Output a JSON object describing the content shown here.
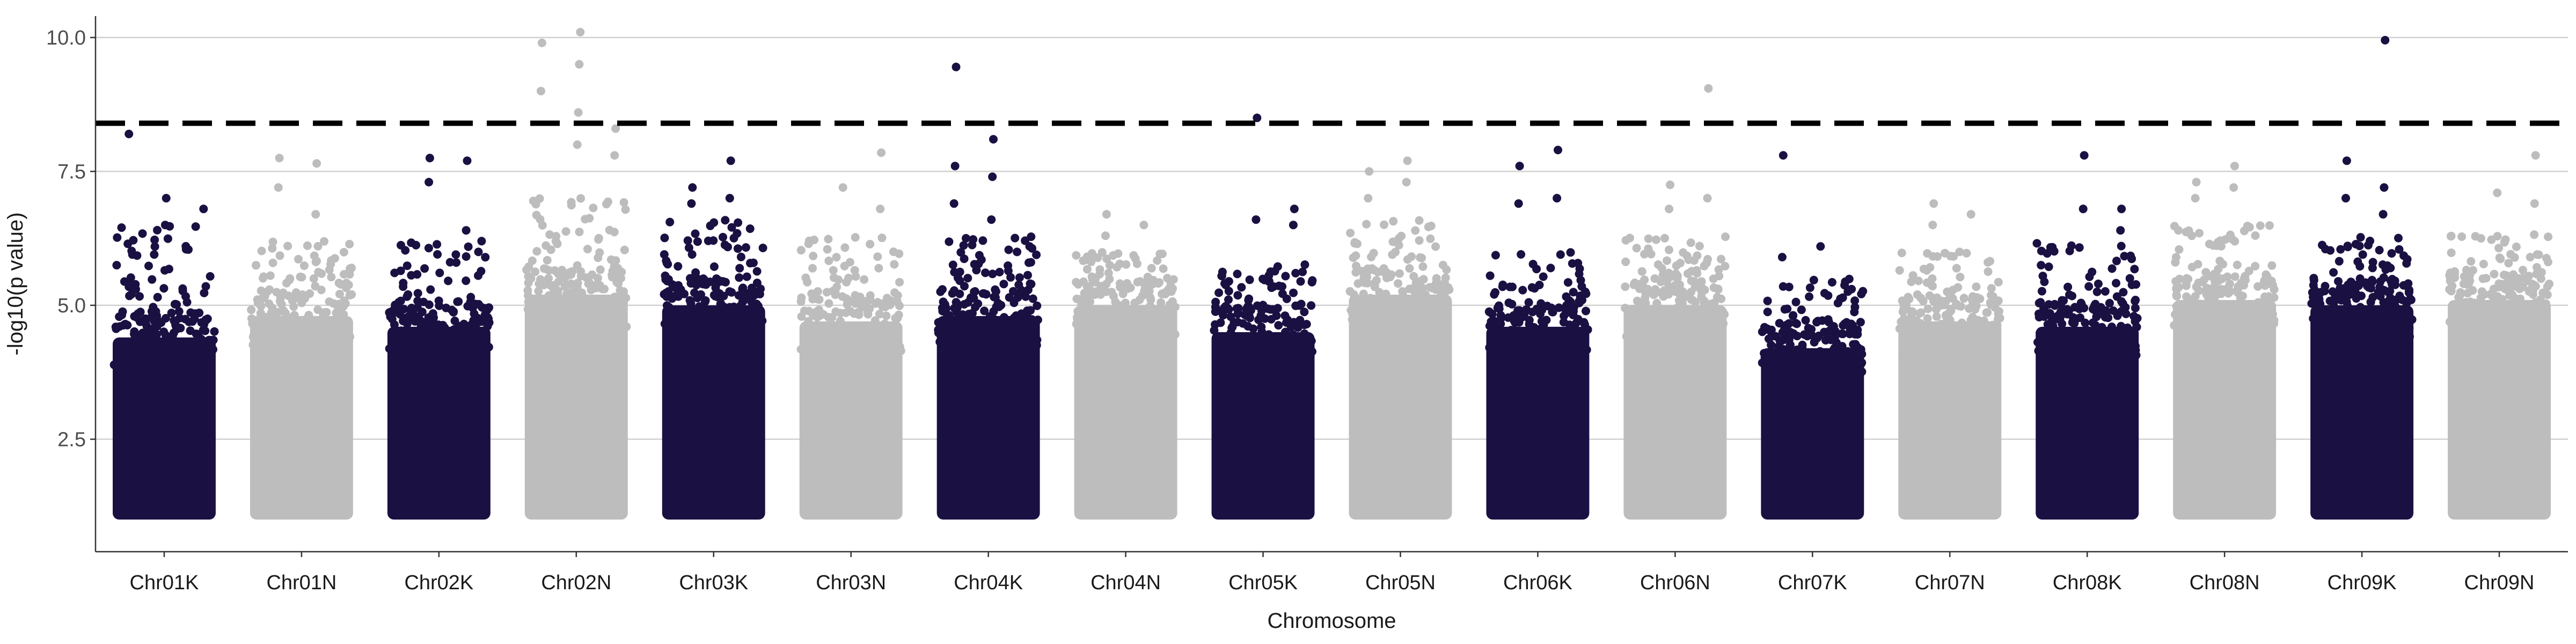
{
  "chart_data": {
    "type": "scatter",
    "subtype": "manhattan",
    "xlabel": "Chromosome",
    "ylabel": "-log10(p value)",
    "ylim": [
      0.4,
      10.4
    ],
    "yticks": [
      2.5,
      5.0,
      7.5,
      10.0
    ],
    "ytick_labels": [
      "2.5",
      "5.0",
      "7.5",
      "10.0"
    ],
    "threshold": 8.4,
    "threshold_style": "dashed",
    "grid": "horizontal major",
    "colors": {
      "odd": "#1b1042",
      "even": "#bdbdbd",
      "threshold": "#000000"
    },
    "min_value": 1.0,
    "chromosomes": [
      {
        "name": "Chr01K",
        "dense_top": 4.4,
        "scatter_top": 6.5,
        "peaks": [
          8.2,
          7.0,
          6.8,
          6.5
        ]
      },
      {
        "name": "Chr01N",
        "dense_top": 4.8,
        "scatter_top": 6.2,
        "peaks": [
          7.75,
          7.65,
          7.2,
          6.7
        ]
      },
      {
        "name": "Chr02K",
        "dense_top": 4.6,
        "scatter_top": 6.2,
        "peaks": [
          7.75,
          7.7,
          7.3,
          6.4
        ]
      },
      {
        "name": "Chr02N",
        "dense_top": 5.2,
        "scatter_top": 7.0,
        "peaks": [
          10.1,
          9.9,
          9.5,
          9.0,
          8.6,
          8.3,
          8.0,
          7.8
        ]
      },
      {
        "name": "Chr03K",
        "dense_top": 5.0,
        "scatter_top": 6.6,
        "peaks": [
          7.7,
          7.2,
          7.0,
          6.9
        ]
      },
      {
        "name": "Chr03N",
        "dense_top": 4.7,
        "scatter_top": 6.3,
        "peaks": [
          7.85,
          7.2,
          6.8
        ]
      },
      {
        "name": "Chr04K",
        "dense_top": 4.8,
        "scatter_top": 6.3,
        "peaks": [
          9.45,
          8.1,
          7.6,
          7.4,
          6.9,
          6.6
        ]
      },
      {
        "name": "Chr04N",
        "dense_top": 5.0,
        "scatter_top": 6.0,
        "peaks": [
          6.7,
          6.5,
          6.3
        ]
      },
      {
        "name": "Chr05K",
        "dense_top": 4.5,
        "scatter_top": 5.8,
        "peaks": [
          8.5,
          6.8,
          6.6,
          6.5
        ]
      },
      {
        "name": "Chr05N",
        "dense_top": 5.2,
        "scatter_top": 6.6,
        "peaks": [
          7.7,
          7.5,
          7.3,
          7.0
        ]
      },
      {
        "name": "Chr06K",
        "dense_top": 4.6,
        "scatter_top": 6.0,
        "peaks": [
          7.9,
          7.6,
          7.0,
          6.9
        ]
      },
      {
        "name": "Chr06N",
        "dense_top": 5.0,
        "scatter_top": 6.3,
        "peaks": [
          9.05,
          7.25,
          7.0,
          6.8
        ]
      },
      {
        "name": "Chr07K",
        "dense_top": 4.2,
        "scatter_top": 5.5,
        "peaks": [
          7.8,
          6.1,
          5.9
        ]
      },
      {
        "name": "Chr07N",
        "dense_top": 4.7,
        "scatter_top": 6.0,
        "peaks": [
          6.9,
          6.7,
          6.5
        ]
      },
      {
        "name": "Chr08K",
        "dense_top": 4.6,
        "scatter_top": 6.2,
        "peaks": [
          7.8,
          6.8,
          6.8,
          6.4
        ]
      },
      {
        "name": "Chr08N",
        "dense_top": 5.1,
        "scatter_top": 6.5,
        "peaks": [
          7.6,
          7.3,
          7.2,
          7.0
        ]
      },
      {
        "name": "Chr09K",
        "dense_top": 5.0,
        "scatter_top": 6.3,
        "peaks": [
          9.95,
          7.7,
          7.2,
          7.0,
          6.7
        ]
      },
      {
        "name": "Chr09N",
        "dense_top": 5.1,
        "scatter_top": 6.4,
        "peaks": [
          7.8,
          7.1,
          6.9
        ]
      }
    ]
  }
}
